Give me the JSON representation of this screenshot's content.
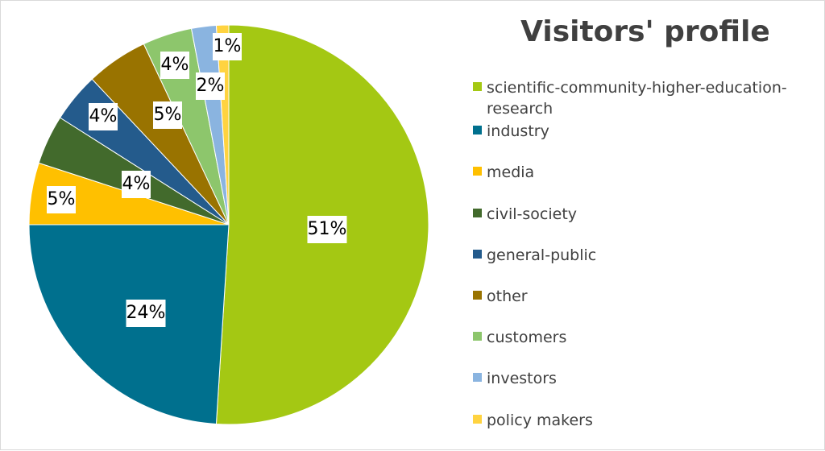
{
  "chart_data": {
    "type": "pie",
    "title": "Visitors' profile",
    "categories": [
      "scientific-community-higher-education-research",
      "industry",
      "media",
      "civil-society",
      "general-public",
      "other",
      "customers",
      "investors",
      "policy makers"
    ],
    "values": [
      51,
      24,
      5,
      4,
      4,
      5,
      4,
      2,
      1
    ],
    "value_labels": [
      "51%",
      "24%",
      "5%",
      "4%",
      "4%",
      "5%",
      "4%",
      "2%",
      "1%"
    ],
    "colors": [
      "#a4c813",
      "#00708e",
      "#ffc000",
      "#426a2c",
      "#245b8c",
      "#997300",
      "#8dc66c",
      "#8ab4e0",
      "#ffd340"
    ],
    "legend_position": "right",
    "start_angle_deg": 90,
    "direction": "clockwise"
  }
}
